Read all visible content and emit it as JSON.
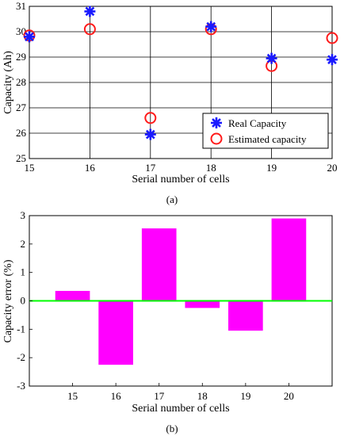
{
  "chart_data": [
    {
      "type": "scatter",
      "panel_label": "(a)",
      "xlabel": "Serial number of cells",
      "ylabel": "Capacity (Ah)",
      "x": [
        15,
        16,
        17,
        18,
        19,
        20
      ],
      "xticks": [
        "15",
        "16",
        "17",
        "18",
        "19",
        "20"
      ],
      "yticks": [
        "25",
        "26",
        "27",
        "28",
        "29",
        "30",
        "31"
      ],
      "xlim": [
        15,
        20
      ],
      "ylim": [
        25,
        31
      ],
      "grid": true,
      "legend_position": "bottom-right",
      "series": [
        {
          "name": "Real Capacity",
          "marker": "asterisk",
          "color": "#1a1aff",
          "values": [
            29.8,
            30.8,
            25.95,
            30.2,
            28.95,
            28.9
          ]
        },
        {
          "name": "Estimated capacity",
          "marker": "circle",
          "color": "#ff1a1a",
          "values": [
            29.85,
            30.1,
            26.6,
            30.1,
            28.65,
            29.75
          ]
        }
      ]
    },
    {
      "type": "bar",
      "panel_label": "(b)",
      "xlabel": "Serial number of cells",
      "ylabel": "Capacity error (%)",
      "categories": [
        "15",
        "16",
        "17",
        "18",
        "19",
        "20"
      ],
      "values": [
        0.35,
        -2.25,
        2.55,
        -0.25,
        -1.05,
        2.9
      ],
      "yticks": [
        "-3",
        "-2",
        "-1",
        "0",
        "1",
        "2",
        "3"
      ],
      "ylim": [
        -3,
        3
      ],
      "xlim": [
        14,
        21
      ],
      "grid": false,
      "bar_color": "#ff00ff",
      "zero_line_color": "#00ff00"
    }
  ]
}
